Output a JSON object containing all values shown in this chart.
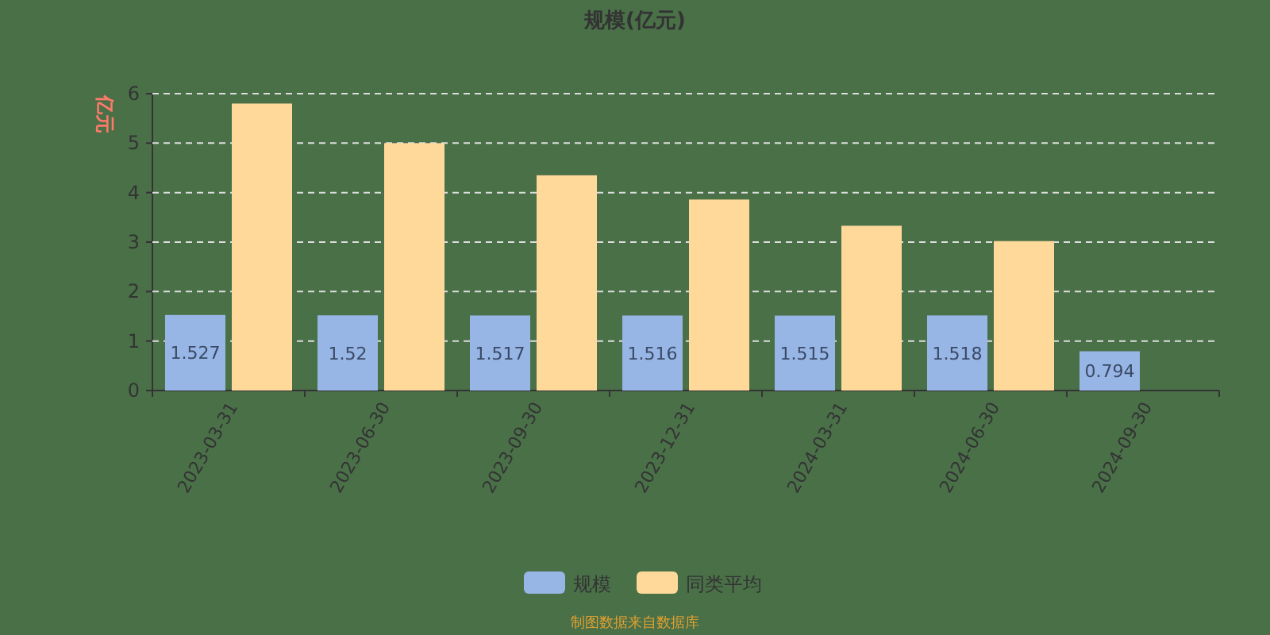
{
  "chart_data": {
    "type": "bar",
    "title": "规模(亿元)",
    "ylabel": "亿元",
    "categories": [
      "2023-03-31",
      "2023-06-30",
      "2023-09-30",
      "2023-12-31",
      "2024-03-31",
      "2024-06-30",
      "2024-09-30"
    ],
    "series": [
      {
        "name": "规模",
        "color": "#97b5e5",
        "values": [
          1.527,
          1.52,
          1.517,
          1.516,
          1.515,
          1.518,
          0.794
        ],
        "value_labels": [
          "1.527",
          "1.52",
          "1.517",
          "1.516",
          "1.515",
          "1.518",
          "0.794"
        ]
      },
      {
        "name": "同类平均",
        "color": "#ffd99a",
        "values": [
          5.8,
          5.0,
          4.35,
          3.86,
          3.33,
          3.02,
          null
        ]
      }
    ],
    "ylim": [
      0,
      6
    ],
    "yticks": [
      0,
      1,
      2,
      3,
      4,
      5,
      6
    ],
    "grid": "y",
    "legend": "bottom",
    "annotations": [
      "制图数据来自数据库"
    ]
  }
}
